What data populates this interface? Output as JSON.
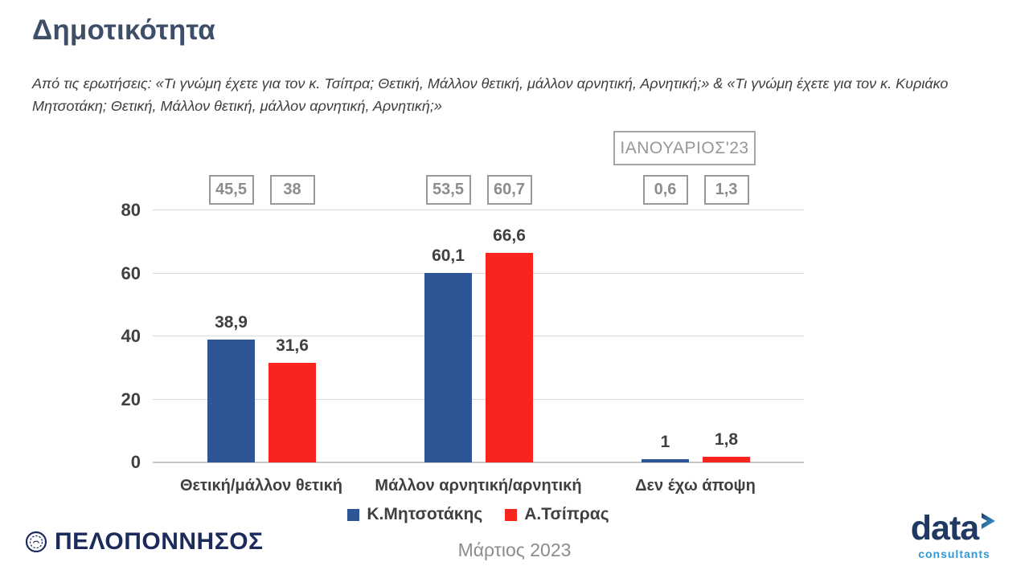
{
  "header": {
    "title": "Δημοτικότητα",
    "subtitle": "Από τις ερωτήσεις: «Τι γνώμη έχετε για τον κ. Τσίπρα; Θετική, Μάλλον θετική, μάλλον αρνητική, Αρνητική;» & «Τι γνώμη έχετε για τον κ. Κυριάκο Μητσοτάκη; Θετική, Μάλλον θετική, μάλλον αρνητική, Αρνητική;»"
  },
  "chart_data": {
    "type": "bar",
    "title": "Δημοτικότητα",
    "categories": [
      "Θετική/μάλλον θετική",
      "Μάλλον αρνητική/αρνητική",
      "Δεν έχω άποψη"
    ],
    "series": [
      {
        "name": "Κ.Μητσοτάκης",
        "color": "#2E5697",
        "values": [
          38.9,
          60.1,
          1
        ],
        "display_labels": [
          "38,9",
          "60,1",
          "1"
        ]
      },
      {
        "name": "Α.Τσίπρας",
        "color": "#F9241D",
        "values": [
          31.6,
          66.6,
          1.8
        ],
        "display_labels": [
          "31,6",
          "66,6",
          "1,8"
        ]
      }
    ],
    "reference_period": {
      "label": "ΙΑΝΟΥΑΡΙΟΣ'23",
      "series": [
        {
          "name": "Κ.Μητσοτάκης",
          "values": [
            45.5,
            53.5,
            0.6
          ],
          "display_labels": [
            "45,5",
            "53,5",
            "0,6"
          ]
        },
        {
          "name": "Α.Τσίπρας",
          "values": [
            38,
            60.7,
            1.3
          ],
          "display_labels": [
            "38",
            "60,7",
            "1,3"
          ]
        }
      ]
    },
    "ylim": [
      0,
      80
    ],
    "yticks": [
      0,
      20,
      40,
      60,
      80
    ],
    "grid": true,
    "legend_position": "bottom",
    "xlabel": "",
    "ylabel": ""
  },
  "footer": {
    "publisher_logo_text": "ΠΕΛΟΠΟΝΝΗΣΟΣ",
    "survey_date": "Μάρτιος 2023",
    "agency_logo": {
      "name": "data",
      "tagline": "consultants"
    }
  },
  "colors": {
    "title_text": "#3F4E68",
    "mitsotakis_blue": "#2E5697",
    "tsipras_red": "#F9241D",
    "box_border": "#999999",
    "box_text": "#8C8C8C",
    "gridline": "#D9D9D9",
    "axis_text": "#404040",
    "publisher_navy": "#1D2A5C",
    "agency_navy": "#1F3864",
    "agency_lightblue": "#2E9BD5"
  }
}
